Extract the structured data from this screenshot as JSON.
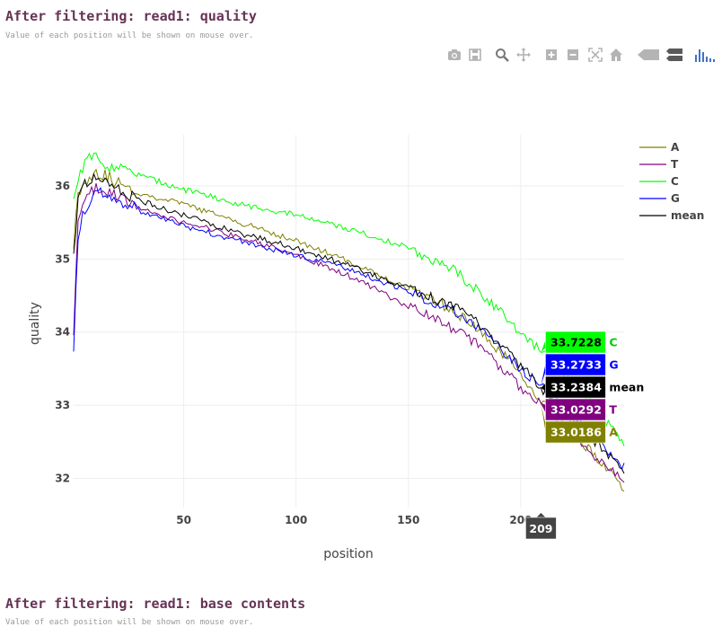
{
  "section1": {
    "title": "After filtering: read1: quality",
    "subtitle": "Value of each position will be shown on mouse over."
  },
  "section2": {
    "title": "After filtering: read1: base contents",
    "subtitle": "Value of each position will be shown on mouse over."
  },
  "modebar": {
    "buttons": [
      {
        "name": "camera-icon",
        "color": "#b4b4b4"
      },
      {
        "name": "save-icon",
        "color": "#b4b4b4"
      },
      {
        "name": "zoom-icon",
        "color": "#8a8a8a"
      },
      {
        "name": "pan-icon",
        "color": "#b4b4b4"
      },
      {
        "name": "zoom-in-icon",
        "color": "#b4b4b4"
      },
      {
        "name": "zoom-out-icon",
        "color": "#b4b4b4"
      },
      {
        "name": "autoscale-icon",
        "color": "#b4b4b4"
      },
      {
        "name": "home-icon",
        "color": "#b4b4b4"
      },
      {
        "name": "spike-lines-icon",
        "color": "#b4b4b4"
      },
      {
        "name": "compare-hover-icon",
        "color": "#5a5a5a"
      },
      {
        "name": "plotly-logo-icon",
        "color": "#3f73c6"
      }
    ]
  },
  "chart_data": {
    "type": "line",
    "xlabel": "position",
    "ylabel": "quality",
    "xlim": [
      1,
      246
    ],
    "ylim": [
      31.6,
      36.7
    ],
    "xticks": [
      50,
      100,
      150,
      200
    ],
    "yticks": [
      32,
      33,
      34,
      35,
      36
    ],
    "grid": true,
    "legend_position": "top-right",
    "hover_x": 209,
    "series": [
      {
        "name": "A",
        "color": "#808000",
        "points": [
          [
            1,
            35.2
          ],
          [
            3,
            35.9
          ],
          [
            6,
            36.05
          ],
          [
            10,
            36.2
          ],
          [
            15,
            36.15
          ],
          [
            20,
            36.05
          ],
          [
            30,
            35.9
          ],
          [
            50,
            35.75
          ],
          [
            75,
            35.5
          ],
          [
            100,
            35.25
          ],
          [
            125,
            34.95
          ],
          [
            150,
            34.6
          ],
          [
            170,
            34.3
          ],
          [
            180,
            34.05
          ],
          [
            190,
            33.75
          ],
          [
            200,
            33.45
          ],
          [
            209,
            33.0186
          ],
          [
            215,
            32.9
          ],
          [
            225,
            32.55
          ],
          [
            235,
            32.25
          ],
          [
            246,
            31.85
          ]
        ]
      },
      {
        "name": "T",
        "color": "#800080",
        "points": [
          [
            1,
            33.9
          ],
          [
            3,
            35.6
          ],
          [
            6,
            35.75
          ],
          [
            10,
            35.95
          ],
          [
            15,
            35.95
          ],
          [
            20,
            35.85
          ],
          [
            30,
            35.7
          ],
          [
            50,
            35.5
          ],
          [
            75,
            35.3
          ],
          [
            100,
            35.05
          ],
          [
            125,
            34.75
          ],
          [
            150,
            34.35
          ],
          [
            170,
            34.05
          ],
          [
            180,
            33.85
          ],
          [
            190,
            33.55
          ],
          [
            200,
            33.25
          ],
          [
            209,
            33.0292
          ],
          [
            215,
            32.8
          ],
          [
            225,
            32.5
          ],
          [
            235,
            32.25
          ],
          [
            246,
            31.95
          ]
        ]
      },
      {
        "name": "C",
        "color": "#00ff00",
        "points": [
          [
            1,
            35.8
          ],
          [
            3,
            36.1
          ],
          [
            6,
            36.35
          ],
          [
            10,
            36.4
          ],
          [
            15,
            36.3
          ],
          [
            20,
            36.25
          ],
          [
            30,
            36.15
          ],
          [
            50,
            35.95
          ],
          [
            75,
            35.75
          ],
          [
            100,
            35.6
          ],
          [
            125,
            35.4
          ],
          [
            150,
            35.15
          ],
          [
            170,
            34.85
          ],
          [
            180,
            34.6
          ],
          [
            190,
            34.3
          ],
          [
            200,
            34.0
          ],
          [
            209,
            33.7228
          ],
          [
            215,
            33.6
          ],
          [
            225,
            33.25
          ],
          [
            235,
            32.9
          ],
          [
            246,
            32.45
          ]
        ]
      },
      {
        "name": "G",
        "color": "#0000ff",
        "points": [
          [
            1,
            33.8
          ],
          [
            3,
            35.3
          ],
          [
            6,
            35.7
          ],
          [
            10,
            35.9
          ],
          [
            15,
            35.9
          ],
          [
            20,
            35.85
          ],
          [
            30,
            35.65
          ],
          [
            50,
            35.45
          ],
          [
            75,
            35.25
          ],
          [
            100,
            35.05
          ],
          [
            125,
            34.85
          ],
          [
            150,
            34.55
          ],
          [
            170,
            34.3
          ],
          [
            180,
            34.1
          ],
          [
            190,
            33.8
          ],
          [
            200,
            33.5
          ],
          [
            209,
            33.2733
          ],
          [
            215,
            33.1
          ],
          [
            225,
            32.8
          ],
          [
            235,
            32.5
          ],
          [
            246,
            32.15
          ]
        ]
      },
      {
        "name": "mean",
        "color": "#000000",
        "points": [
          [
            1,
            35.0
          ],
          [
            3,
            35.8
          ],
          [
            6,
            36.0
          ],
          [
            10,
            36.1
          ],
          [
            15,
            36.05
          ],
          [
            20,
            35.95
          ],
          [
            30,
            35.8
          ],
          [
            50,
            35.6
          ],
          [
            75,
            35.35
          ],
          [
            100,
            35.15
          ],
          [
            125,
            34.9
          ],
          [
            150,
            34.6
          ],
          [
            170,
            34.35
          ],
          [
            180,
            34.15
          ],
          [
            190,
            33.85
          ],
          [
            200,
            33.55
          ],
          [
            209,
            33.2384
          ],
          [
            215,
            33.05
          ],
          [
            225,
            32.75
          ],
          [
            235,
            32.45
          ],
          [
            246,
            32.1
          ]
        ]
      }
    ],
    "hover_labels": [
      {
        "series": "C",
        "value": "33.7228",
        "bg": "#00ff00",
        "fg": "#000000",
        "name_color": "#00cc00"
      },
      {
        "series": "G",
        "value": "33.2733",
        "bg": "#0000ff",
        "fg": "#ffffff",
        "name_color": "#0000ff"
      },
      {
        "series": "mean",
        "value": "33.2384",
        "bg": "#000000",
        "fg": "#ffffff",
        "name_color": "#000000"
      },
      {
        "series": "T",
        "value": "33.0292",
        "bg": "#800080",
        "fg": "#ffffff",
        "name_color": "#800080"
      },
      {
        "series": "A",
        "value": "33.0186",
        "bg": "#808000",
        "fg": "#ffffff",
        "name_color": "#808000"
      }
    ]
  }
}
